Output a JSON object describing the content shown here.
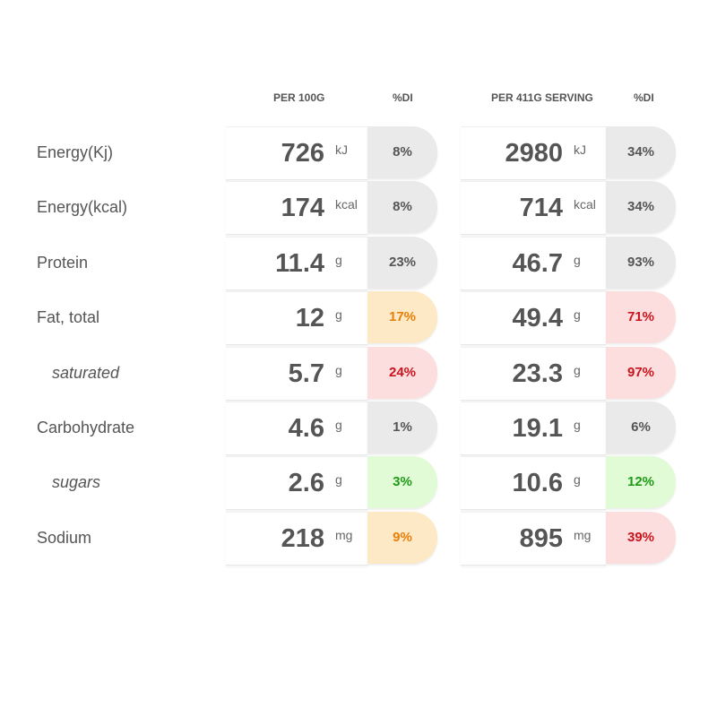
{
  "headers": {
    "per_100g": "PER 100G",
    "di_1": "%DI",
    "per_serving": "PER 411G SERVING",
    "di_2": "%DI"
  },
  "rows": [
    {
      "label": "Energy(Kj)",
      "sub": false,
      "per100": {
        "value": "726",
        "unit": "kJ",
        "di": "8%",
        "di_level": "grey"
      },
      "serving": {
        "value": "2980",
        "unit": "kJ",
        "di": "34%",
        "di_level": "grey"
      }
    },
    {
      "label": "Energy(kcal)",
      "sub": false,
      "per100": {
        "value": "174",
        "unit": "kcal",
        "di": "8%",
        "di_level": "grey"
      },
      "serving": {
        "value": "714",
        "unit": "kcal",
        "di": "34%",
        "di_level": "grey"
      }
    },
    {
      "label": "Protein",
      "sub": false,
      "per100": {
        "value": "11.4",
        "unit": "g",
        "di": "23%",
        "di_level": "grey"
      },
      "serving": {
        "value": "46.7",
        "unit": "g",
        "di": "93%",
        "di_level": "grey"
      }
    },
    {
      "label": "Fat, total",
      "sub": false,
      "per100": {
        "value": "12",
        "unit": "g",
        "di": "17%",
        "di_level": "orange"
      },
      "serving": {
        "value": "49.4",
        "unit": "g",
        "di": "71%",
        "di_level": "red"
      }
    },
    {
      "label": "saturated",
      "sub": true,
      "per100": {
        "value": "5.7",
        "unit": "g",
        "di": "24%",
        "di_level": "red"
      },
      "serving": {
        "value": "23.3",
        "unit": "g",
        "di": "97%",
        "di_level": "red"
      }
    },
    {
      "label": "Carbohydrate",
      "sub": false,
      "per100": {
        "value": "4.6",
        "unit": "g",
        "di": "1%",
        "di_level": "grey"
      },
      "serving": {
        "value": "19.1",
        "unit": "g",
        "di": "6%",
        "di_level": "grey"
      }
    },
    {
      "label": "sugars",
      "sub": true,
      "per100": {
        "value": "2.6",
        "unit": "g",
        "di": "3%",
        "di_level": "green"
      },
      "serving": {
        "value": "10.6",
        "unit": "g",
        "di": "12%",
        "di_level": "green"
      }
    },
    {
      "label": "Sodium",
      "sub": false,
      "per100": {
        "value": "218",
        "unit": "mg",
        "di": "9%",
        "di_level": "orange"
      },
      "serving": {
        "value": "895",
        "unit": "mg",
        "di": "39%",
        "di_level": "red"
      }
    }
  ],
  "colors": {
    "grey_bg": "#eaeaea",
    "grey_text": "#555555",
    "orange_bg": "#fde9c6",
    "orange_text": "#e87e08",
    "red_bg": "#fcdede",
    "red_text": "#c9141e",
    "green_bg": "#e0fbd6",
    "green_text": "#1f9a17"
  }
}
